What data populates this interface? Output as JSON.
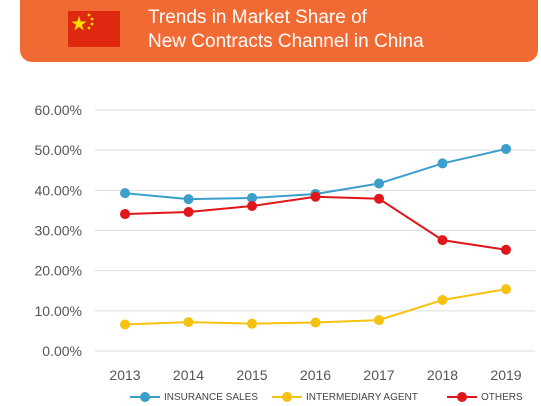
{
  "header": {
    "title_line1": "Trends in Market Share of",
    "title_line2": "New Contracts Channel in China",
    "flag_icon": "china-flag-icon"
  },
  "colors": {
    "banner": "#f26a33",
    "insurance_sales": "#3a9fca",
    "intermediary_agent": "#f5c211",
    "others": "#e0161a",
    "grid": "#dddddd"
  },
  "chart_data": {
    "type": "line",
    "categories": [
      "2013",
      "2014",
      "2015",
      "2016",
      "2017",
      "2018",
      "2019"
    ],
    "ylim": [
      0,
      60
    ],
    "yticks": [
      "0.00%",
      "10.00%",
      "20.00%",
      "30.00%",
      "40.00%",
      "50.00%",
      "60.00%"
    ],
    "grid": true,
    "legend_position": "bottom",
    "series": [
      {
        "name": "INSURANCE SALES",
        "values": [
          39.3,
          37.8,
          38.1,
          39.1,
          41.7,
          46.7,
          50.3
        ]
      },
      {
        "name": "INTERMEDIARY AGENT",
        "values": [
          6.6,
          7.2,
          6.8,
          7.1,
          7.7,
          12.7,
          15.4
        ]
      },
      {
        "name": "OTHERS",
        "values": [
          34.1,
          34.6,
          36.1,
          38.4,
          37.9,
          27.6,
          25.2
        ]
      }
    ]
  }
}
